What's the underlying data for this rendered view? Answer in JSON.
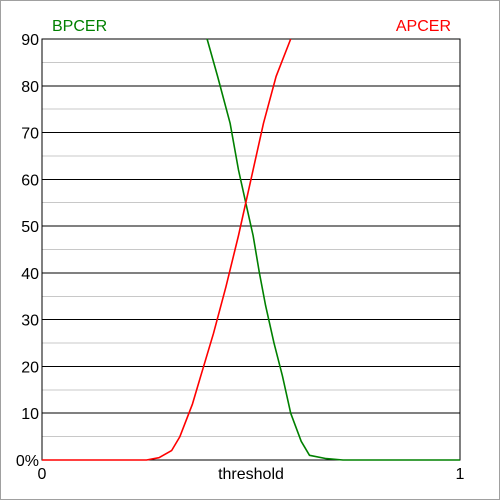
{
  "chart_data": {
    "type": "line",
    "xlabel": "threshold",
    "x_ticks": [
      "0",
      "1"
    ],
    "y_ticks": [
      "0%",
      "10",
      "20",
      "30",
      "40",
      "50",
      "60",
      "70",
      "80",
      "90"
    ],
    "xlim": [
      0,
      1
    ],
    "ylim": [
      0,
      90
    ],
    "grid": true,
    "series": [
      {
        "name": "BPCER",
        "color": "#008000",
        "points": [
          [
            0.395,
            90
          ],
          [
            0.42,
            82
          ],
          [
            0.45,
            72
          ],
          [
            0.47,
            62
          ],
          [
            0.49,
            54
          ],
          [
            0.505,
            48
          ],
          [
            0.52,
            40
          ],
          [
            0.535,
            33
          ],
          [
            0.555,
            25
          ],
          [
            0.575,
            18
          ],
          [
            0.595,
            10
          ],
          [
            0.62,
            4
          ],
          [
            0.64,
            1
          ],
          [
            0.68,
            0.3
          ],
          [
            0.72,
            0
          ],
          [
            1.0,
            0
          ]
        ]
      },
      {
        "name": "APCER",
        "color": "#ff0000",
        "points": [
          [
            0.0,
            0
          ],
          [
            0.25,
            0
          ],
          [
            0.28,
            0.5
          ],
          [
            0.31,
            2
          ],
          [
            0.33,
            5
          ],
          [
            0.36,
            12
          ],
          [
            0.38,
            18
          ],
          [
            0.41,
            27
          ],
          [
            0.44,
            37
          ],
          [
            0.47,
            48
          ],
          [
            0.5,
            60
          ],
          [
            0.53,
            72
          ],
          [
            0.56,
            82
          ],
          [
            0.595,
            90
          ]
        ]
      }
    ]
  }
}
